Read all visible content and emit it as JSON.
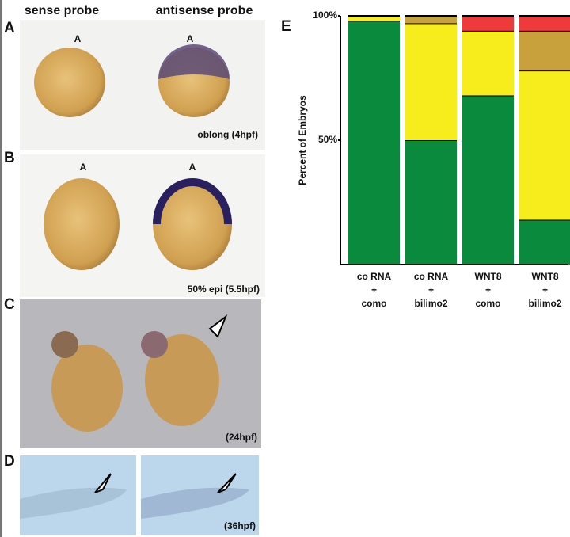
{
  "panels": {
    "column_sense": "sense probe",
    "column_antisense": "antisense probe",
    "label_a": "A",
    "label_b": "B",
    "label_c": "C",
    "label_d": "D",
    "animal_pole_a1": "A",
    "animal_pole_a2": "A",
    "animal_pole_b1": "A",
    "animal_pole_b2": "A",
    "stage_a": "oblong (4hpf)",
    "stage_b": "50% epi (5.5hpf)",
    "stage_c": "(24hpf)",
    "stage_d": "(36hpf)"
  },
  "chart_data": {
    "type": "stacked_bar",
    "panel_label": "E",
    "y_label": "Percent of Embryos",
    "categories": [
      [
        "co RNA",
        "+",
        "como"
      ],
      [
        "co RNA",
        "+",
        "bilimo2"
      ],
      [
        "WNT8",
        "+",
        "como"
      ],
      [
        "WNT8",
        "+",
        "bilimo2"
      ]
    ],
    "series": [
      {
        "color": "#0a8a3c",
        "values": [
          98,
          50,
          68,
          18
        ]
      },
      {
        "color": "#f7ec1c",
        "values": [
          2,
          47,
          26,
          60
        ]
      },
      {
        "color": "#c8a03c",
        "values": [
          0,
          3,
          0,
          16
        ]
      },
      {
        "color": "#ee3a3a",
        "values": [
          0,
          0,
          6,
          6
        ]
      }
    ],
    "ylim": [
      0,
      100
    ],
    "yticks": [
      {
        "value": 50,
        "label": "50%"
      },
      {
        "value": 100,
        "label": "100%"
      }
    ]
  }
}
